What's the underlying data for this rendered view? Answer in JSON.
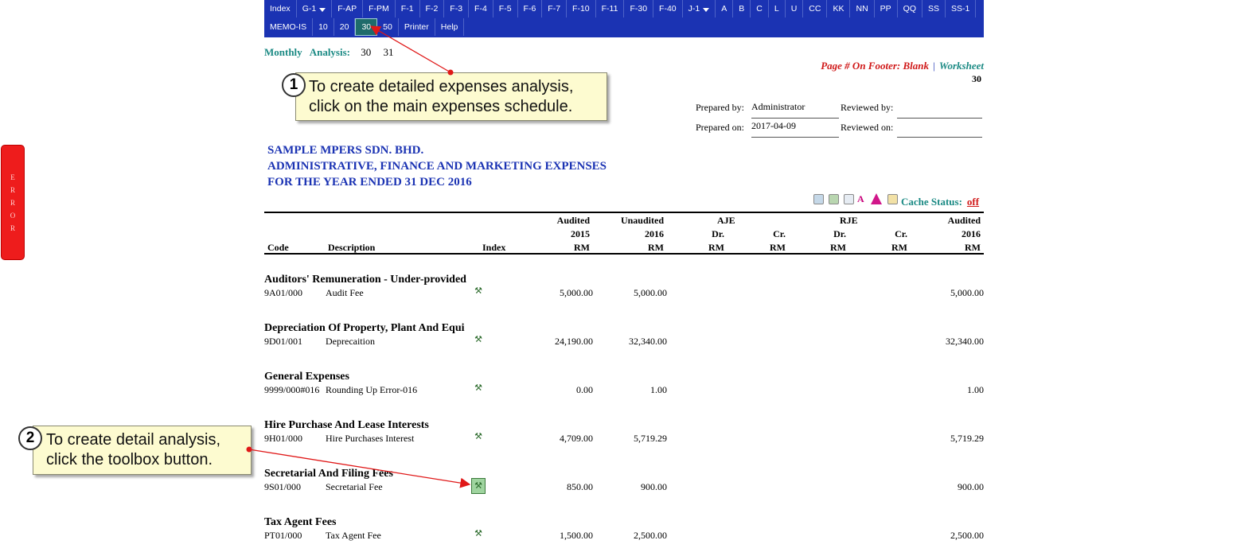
{
  "nav": {
    "row1": [
      {
        "label": "Index"
      },
      {
        "label": "G-1",
        "dropdown": true
      },
      {
        "label": "F-AP"
      },
      {
        "label": "F-PM"
      },
      {
        "label": "F-1"
      },
      {
        "label": "F-2"
      },
      {
        "label": "F-3"
      },
      {
        "label": "F-4"
      },
      {
        "label": "F-5"
      },
      {
        "label": "F-6"
      },
      {
        "label": "F-7"
      },
      {
        "label": "F-10"
      },
      {
        "label": "F-11"
      },
      {
        "label": "F-30"
      },
      {
        "label": "F-40"
      },
      {
        "label": "J-1",
        "dropdown": true
      },
      {
        "label": "A"
      },
      {
        "label": "B"
      },
      {
        "label": "C"
      },
      {
        "label": "L"
      },
      {
        "label": "U"
      },
      {
        "label": "CC"
      },
      {
        "label": "KK"
      },
      {
        "label": "NN"
      },
      {
        "label": "PP"
      },
      {
        "label": "QQ"
      },
      {
        "label": "SS"
      },
      {
        "label": "SS-1"
      }
    ],
    "row2": [
      {
        "label": "MEMO-IS"
      },
      {
        "label": "10"
      },
      {
        "label": "20"
      },
      {
        "label": "30",
        "active": true
      },
      {
        "label": "50"
      },
      {
        "label": "Printer"
      },
      {
        "label": "Help"
      }
    ]
  },
  "monthly": {
    "label": "Monthly   Analysis:",
    "links": [
      "30",
      "31"
    ]
  },
  "footer_note": {
    "red": "Page # On Footer: Blank",
    "sep": "|",
    "link": "Worksheet"
  },
  "worksheet_number": "30",
  "prepared": {
    "prepared_by_label": "Prepared by:",
    "prepared_by": "Administrator",
    "prepared_on_label": "Prepared on:",
    "prepared_on": "2017-04-09",
    "reviewed_by_label": "Reviewed by:",
    "reviewed_by": "",
    "reviewed_on_label": "Reviewed on:",
    "reviewed_on": ""
  },
  "title": {
    "company": "SAMPLE MPERS SDN. BHD.",
    "schedule": "ADMINISTRATIVE, FINANCE AND MARKETING EXPENSES",
    "period": "FOR THE YEAR ENDED 31 DEC 2016"
  },
  "toolbar": {
    "icons": [
      "print-icon",
      "export-icon",
      "copy-icon",
      "font-icon",
      "chart-icon",
      "note-icon"
    ],
    "cache_label": "Cache Status:",
    "cache_value": "off"
  },
  "table": {
    "headers": {
      "code": "Code",
      "description": "Description",
      "index": "Index",
      "audited_2015": [
        "Audited",
        "2015",
        "RM"
      ],
      "unaudited_2016": [
        "Unaudited",
        "2016",
        "RM"
      ],
      "aje": "AJE",
      "aje_dr": [
        "Dr.",
        "RM"
      ],
      "aje_cr": [
        "Cr.",
        "RM"
      ],
      "rje": "RJE",
      "rje_dr": [
        "Dr.",
        "RM"
      ],
      "rje_cr": [
        "Cr.",
        "RM"
      ],
      "audited_2016": [
        "Audited",
        "2016",
        "RM"
      ]
    },
    "groups": [
      {
        "title": "Auditors' Remuneration - Under-provided",
        "code": "9A01/000",
        "description": "Audit Fee",
        "a2015": "5,000.00",
        "u2016": "5,000.00",
        "a2016": "5,000.00"
      },
      {
        "title": "Depreciation Of Property, Plant And Equi",
        "code": "9D01/001",
        "description": "Deprecaition",
        "a2015": "24,190.00",
        "u2016": "32,340.00",
        "a2016": "32,340.00"
      },
      {
        "title": "General Expenses",
        "code": "9999/000#016",
        "description": "Rounding Up Error-016",
        "a2015": "0.00",
        "u2016": "1.00",
        "a2016": "1.00"
      },
      {
        "title": "Hire Purchase And Lease Interests",
        "code": "9H01/000",
        "description": "Hire Purchases Interest",
        "a2015": "4,709.00",
        "u2016": "5,719.29",
        "a2016": "5,719.29"
      },
      {
        "title": "Secretarial And Filing Fees",
        "code": "9S01/000",
        "description": "Secretarial Fee",
        "a2015": "850.00",
        "u2016": "900.00",
        "a2016": "900.00"
      },
      {
        "title": "Tax Agent Fees",
        "code": "PT01/000",
        "description": "Tax Agent Fee",
        "a2015": "1,500.00",
        "u2016": "2,500.00",
        "a2016": "2,500.00"
      }
    ]
  },
  "error_tab": {
    "letters": [
      "E",
      "R",
      "R",
      "O",
      "R"
    ]
  },
  "callouts": [
    {
      "number": "1",
      "lines": [
        "To create detailed expenses analysis,",
        "click on the main expenses schedule."
      ]
    },
    {
      "number": "2",
      "lines": [
        "To create detail analysis,",
        "click the toolbox button."
      ]
    }
  ],
  "colors": {
    "nav_bg": "#1b33b3",
    "teal": "#1b8a84",
    "red": "#d01919",
    "title_blue": "#1b33b3",
    "callout_bg": "#fdfbd0",
    "error_red": "#ee1c1c"
  }
}
